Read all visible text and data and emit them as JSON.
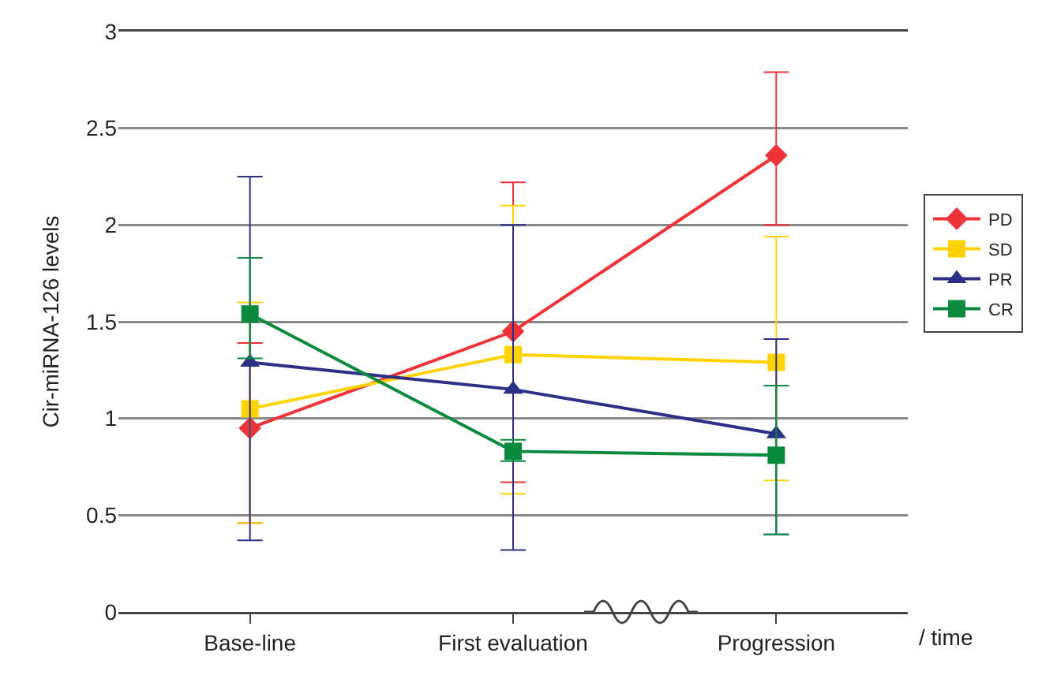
{
  "chart_data": {
    "type": "line",
    "ylabel": "Cir-miRNA-126 levels",
    "xlabel": "/ time",
    "categories": [
      "Base-line",
      "First evaluation",
      "Progression"
    ],
    "series": [
      {
        "name": "PD",
        "color": "#ee3338",
        "marker": "diamond",
        "values": [
          0.95,
          1.45,
          2.36
        ],
        "errors": [
          [
            0.46,
            1.39
          ],
          [
            0.67,
            2.22
          ],
          [
            2.0,
            2.79
          ]
        ]
      },
      {
        "name": "SD",
        "color": "#ffd200",
        "marker": "square",
        "values": [
          1.05,
          1.33,
          1.29
        ],
        "errors": [
          [
            0.46,
            1.6
          ],
          [
            0.61,
            2.1
          ],
          [
            0.68,
            1.94
          ]
        ]
      },
      {
        "name": "PR",
        "color": "#2b2f86",
        "marker": "triangle",
        "values": [
          1.29,
          1.15,
          0.92
        ],
        "errors": [
          [
            0.37,
            2.25
          ],
          [
            0.32,
            2.0
          ],
          [
            0.4,
            1.41
          ]
        ]
      },
      {
        "name": "CR",
        "color": "#0a8a3c",
        "marker": "square",
        "values": [
          1.54,
          0.83,
          0.81
        ],
        "errors": [
          [
            1.31,
            1.83
          ],
          [
            0.78,
            0.89
          ],
          [
            0.4,
            1.17
          ]
        ]
      }
    ],
    "ylim": [
      0,
      3
    ],
    "yticks": [
      0,
      0.5,
      1,
      1.5,
      2,
      2.5,
      3
    ],
    "grid": "y",
    "legend": "right",
    "line_style": "solid"
  }
}
